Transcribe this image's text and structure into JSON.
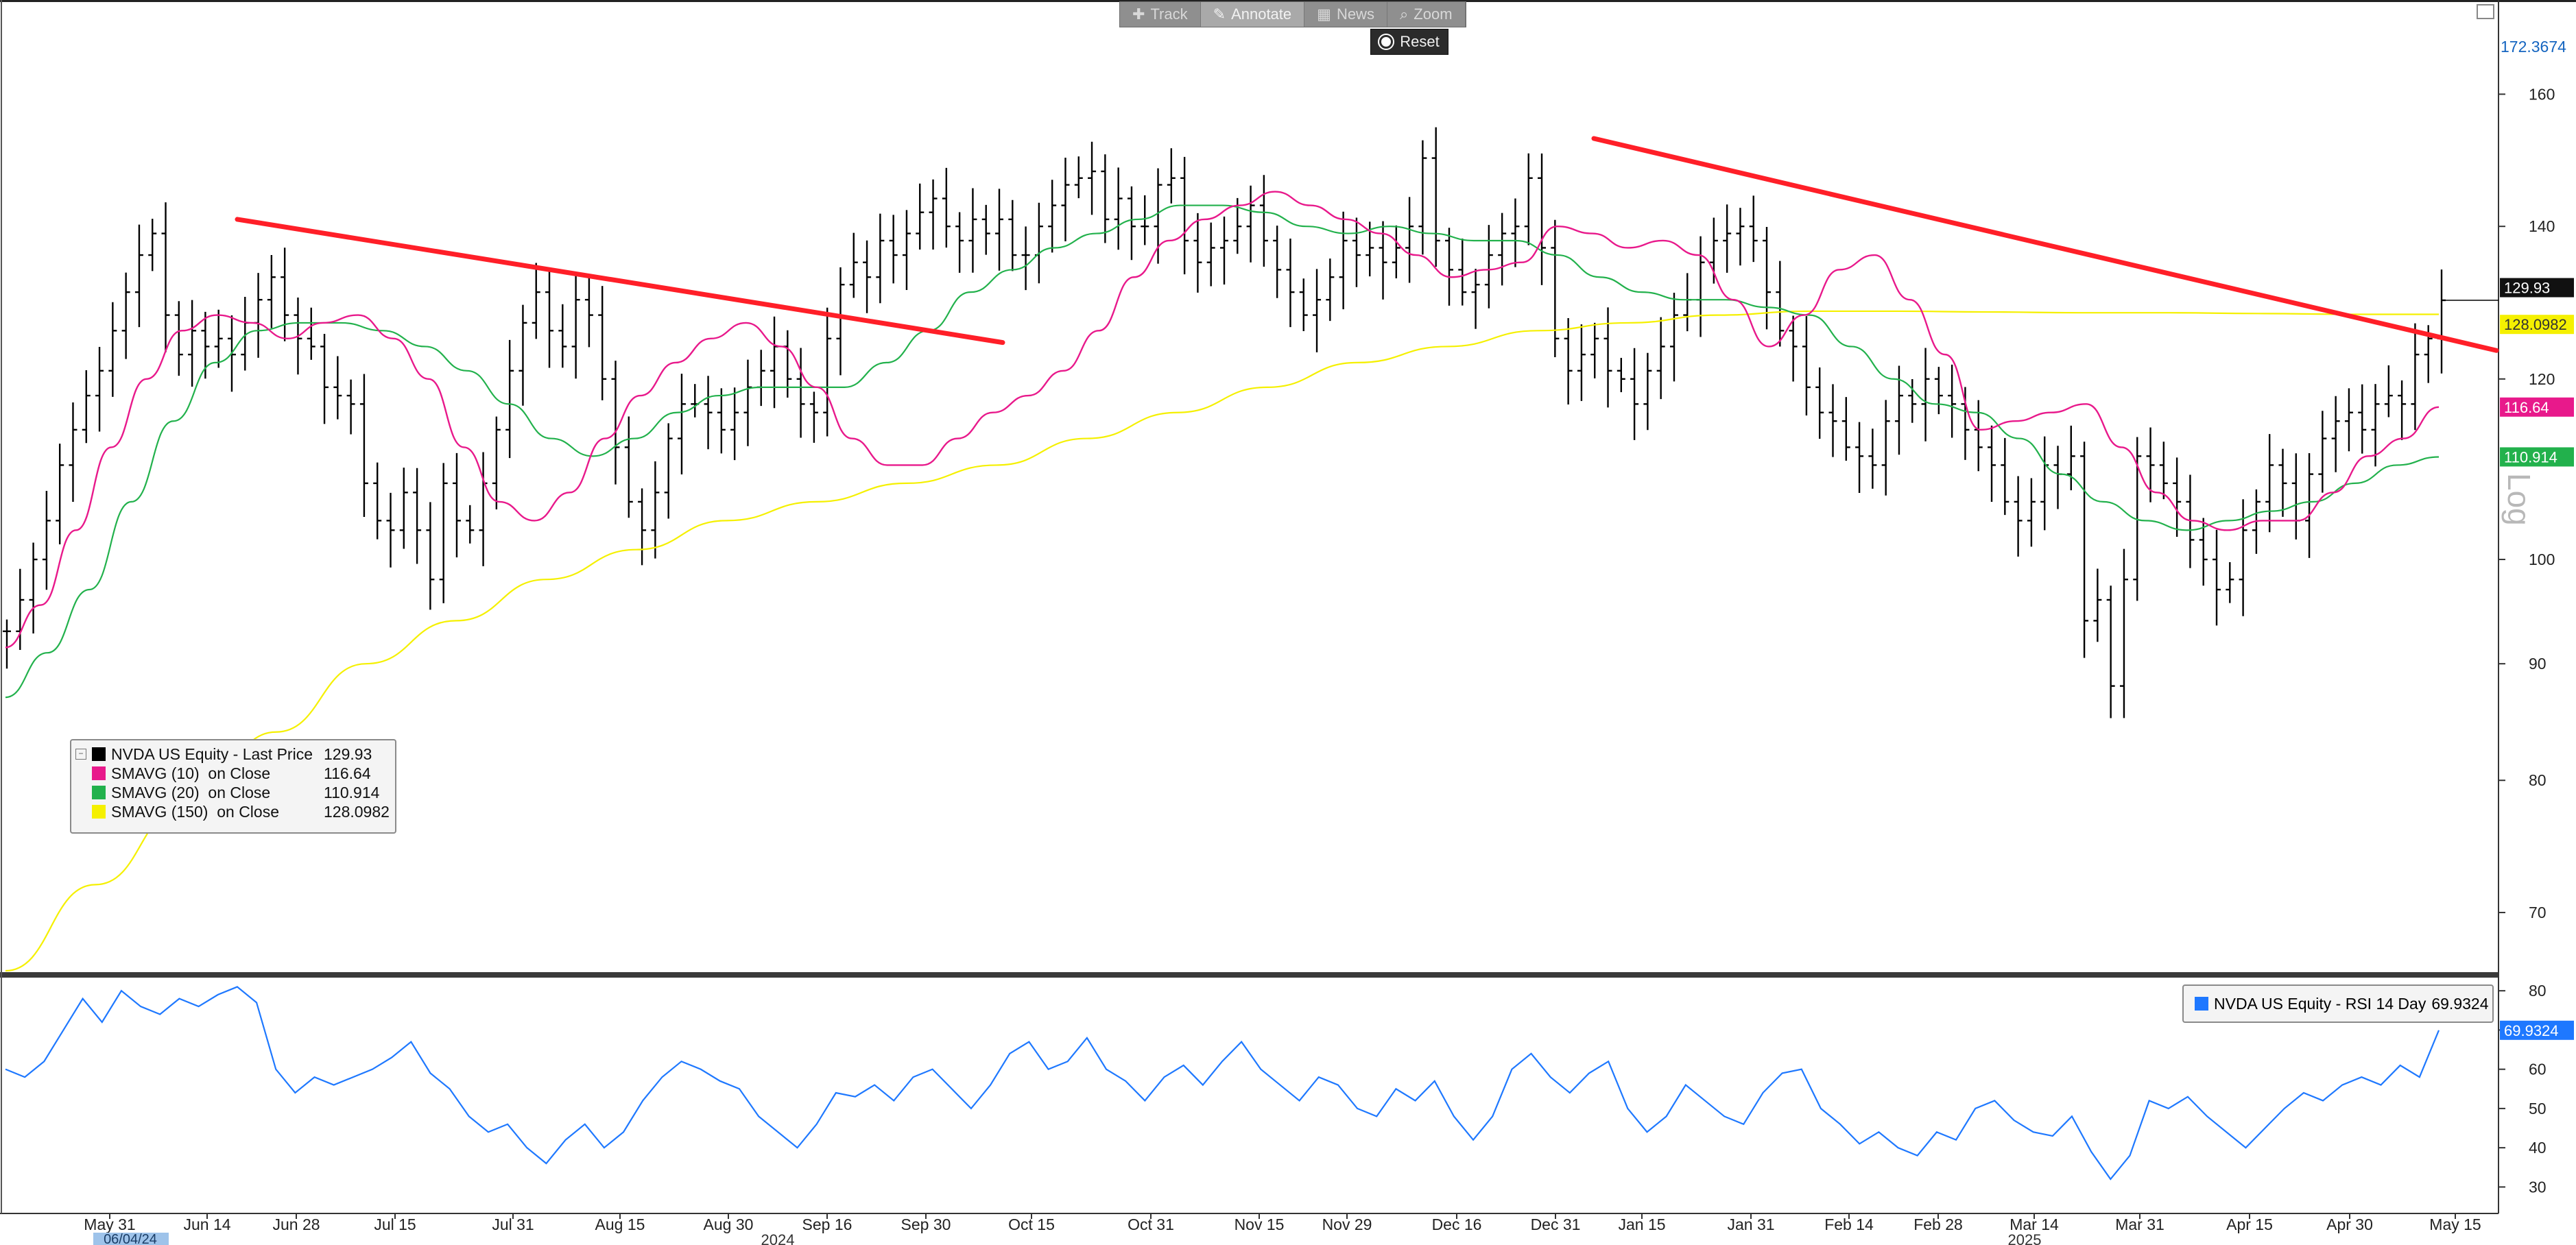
{
  "toolbar": {
    "buttons": [
      {
        "label": "Track",
        "icon": "crosshair-icon",
        "active": false
      },
      {
        "label": "Annotate",
        "icon": "pencil-icon",
        "active": true
      },
      {
        "label": "News",
        "icon": "news-icon",
        "active": false
      },
      {
        "label": "Zoom",
        "icon": "magnifier-icon",
        "active": false
      }
    ],
    "reset_label": "Reset"
  },
  "log_label": "Log",
  "legend": {
    "rows": [
      {
        "name": "NVDA US Equity - Last Price",
        "value": "129.93",
        "color": "#000000"
      },
      {
        "name": "SMAVG (10)  on Close",
        "value": "116.64",
        "color": "#e8198b"
      },
      {
        "name": "SMAVG (20)  on Close",
        "value": "110.914",
        "color": "#22b14c"
      },
      {
        "name": "SMAVG (150)  on Close",
        "value": "128.0982",
        "color": "#f5f000"
      }
    ]
  },
  "rsi_legend": {
    "name": "NVDA US Equity - RSI 14 Day",
    "value": "69.9324",
    "color": "#1e78ff"
  },
  "chart_data": [
    {
      "type": "line",
      "subtype": "ohlc-bars",
      "x_ticks": [
        "May 31",
        "Jun 14",
        "Jun 28",
        "Jul 15",
        "Jul 31",
        "Aug 15",
        "Aug 30",
        "Sep 16",
        "Sep 30",
        "Oct 15",
        "Oct 31",
        "Nov 15",
        "Nov 29",
        "Dec 16",
        "Dec 31",
        "Jan 15",
        "Jan 31",
        "Feb 14",
        "Feb 28",
        "Mar 14",
        "Mar 31",
        "Apr 15",
        "Apr 30",
        "May 15"
      ],
      "year_labels": [
        "2024",
        "2025"
      ],
      "start_date_label": "06/04/24",
      "y_scale": "log",
      "y_ticks": [
        70,
        80,
        90,
        100,
        120,
        140,
        160
      ],
      "ylim": [
        66,
        175
      ],
      "y_max_label": "172.3674",
      "series": [
        {
          "name": "NVDA US Equity - Last Price",
          "color": "#000000",
          "values": [
            93,
            96,
            100,
            104,
            110,
            114,
            118,
            121,
            126,
            131,
            136,
            139,
            128,
            123,
            126,
            124,
            125,
            123,
            127,
            130,
            133,
            128,
            125,
            124,
            119,
            118,
            117,
            108,
            104,
            103,
            107,
            103,
            98,
            108,
            104,
            103,
            108,
            114,
            121,
            127,
            131,
            126,
            124,
            130,
            128,
            120,
            112,
            106,
            103,
            107,
            113,
            117,
            117,
            116,
            114,
            116,
            119,
            121,
            124,
            120,
            117,
            116,
            125,
            132,
            135,
            133,
            138,
            136,
            139,
            142,
            144,
            140,
            138,
            141,
            139,
            141,
            136,
            136,
            140,
            143,
            146,
            147,
            148,
            141,
            144,
            140,
            140,
            146,
            147,
            138,
            135,
            137,
            138,
            140,
            143,
            138,
            134,
            131,
            128,
            130,
            133,
            138,
            136,
            137,
            135,
            137,
            140,
            150,
            138,
            134,
            131,
            132,
            136,
            139,
            140,
            147,
            137,
            125,
            121,
            123,
            125,
            121,
            120,
            117,
            121,
            124,
            128,
            130,
            135,
            138,
            139,
            140,
            138,
            131,
            126,
            124,
            119,
            116,
            115,
            112,
            111,
            110,
            115,
            118,
            117,
            120,
            118,
            117,
            114,
            112,
            110,
            106,
            104,
            106,
            110,
            109,
            111,
            94,
            96,
            88,
            98,
            111,
            110,
            108,
            106,
            102,
            100,
            97,
            98,
            103,
            106,
            110,
            108,
            104,
            109,
            113,
            115,
            116,
            114,
            117,
            118,
            117,
            123,
            125,
            129.93
          ]
        },
        {
          "name": "SMAVG (10)  on Close",
          "color": "#e8198b",
          "values": [
            91.5,
            95.5,
            103,
            112,
            120,
            126,
            128,
            127,
            125,
            127,
            128,
            125,
            120,
            112,
            106,
            104,
            107,
            113,
            118,
            122,
            125,
            127,
            124,
            119,
            113,
            110,
            110,
            113,
            116,
            118,
            121,
            126,
            133,
            138,
            141,
            143,
            145,
            143,
            141,
            139,
            136,
            133,
            134,
            135,
            140,
            139,
            137,
            138,
            136,
            130,
            124,
            128,
            134,
            136,
            130,
            123,
            114,
            115,
            116,
            117,
            112,
            107,
            104,
            103,
            104,
            104,
            107,
            111,
            113,
            116.64
          ]
        },
        {
          "name": "SMAVG (20)  on Close",
          "color": "#22b14c",
          "values": [
            87,
            91,
            97,
            106,
            115,
            122,
            126,
            127,
            127,
            126,
            124,
            121,
            117,
            113,
            111,
            113,
            116,
            118,
            119,
            119,
            119,
            122,
            126,
            131,
            134,
            137,
            139,
            141,
            143,
            143,
            142,
            140,
            139,
            140,
            139,
            138,
            138,
            136,
            133,
            131,
            130,
            130,
            129,
            128,
            124,
            120,
            117,
            116,
            113,
            109,
            106,
            104,
            103,
            104,
            105,
            106,
            108,
            110,
            110.914
          ]
        },
        {
          "name": "SMAVG (150)  on Close",
          "color": "#f5f000",
          "values": [
            66,
            72,
            78,
            84,
            90,
            94,
            98,
            101,
            104,
            106,
            108,
            110,
            113,
            116,
            119,
            122,
            124,
            126,
            127,
            128,
            128.5,
            128.5,
            128.4,
            128.3,
            128.3,
            128.2,
            128.1,
            128.0982
          ]
        }
      ],
      "annotations": [
        {
          "type": "trendline",
          "color": "#ff1f28",
          "from": {
            "x": "Jun 14",
            "y": 141
          },
          "to": {
            "x": "Oct 4",
            "y": 124.5
          }
        },
        {
          "type": "trendline",
          "color": "#ff1f28",
          "from": {
            "x": "Jan 6",
            "y": 153
          },
          "to": {
            "x": "May 16",
            "y": 123.5
          }
        }
      ],
      "price_tags": [
        {
          "value": "129.93",
          "bg": "#111111",
          "fg": "#ffffff"
        },
        {
          "value": "128.0982",
          "bg": "#f5f000",
          "fg": "#333333"
        },
        {
          "value": "116.64",
          "bg": "#e8198b",
          "fg": "#ffffff"
        },
        {
          "value": "110.914",
          "bg": "#22b14c",
          "fg": "#ffffff"
        }
      ]
    },
    {
      "type": "line",
      "title": "",
      "y_ticks": [
        30,
        40,
        50,
        60,
        70,
        80
      ],
      "ylim": [
        25,
        83
      ],
      "series": [
        {
          "name": "NVDA US Equity - RSI 14 Day",
          "color": "#1e78ff",
          "values": [
            60,
            58,
            62,
            70,
            78,
            72,
            80,
            76,
            74,
            78,
            76,
            79,
            81,
            77,
            60,
            54,
            58,
            56,
            58,
            60,
            63,
            67,
            59,
            55,
            48,
            44,
            46,
            40,
            36,
            42,
            46,
            40,
            44,
            52,
            58,
            62,
            60,
            57,
            55,
            48,
            44,
            40,
            46,
            54,
            53,
            56,
            52,
            58,
            60,
            55,
            50,
            56,
            64,
            67,
            60,
            62,
            68,
            60,
            57,
            52,
            58,
            61,
            56,
            62,
            67,
            60,
            56,
            52,
            58,
            56,
            50,
            48,
            55,
            52,
            57,
            48,
            42,
            48,
            60,
            64,
            58,
            54,
            59,
            62,
            50,
            44,
            48,
            56,
            52,
            48,
            46,
            54,
            59,
            60,
            50,
            46,
            41,
            44,
            40,
            38,
            44,
            42,
            50,
            52,
            47,
            44,
            43,
            48,
            39,
            32,
            38,
            52,
            50,
            53,
            48,
            44,
            40,
            45,
            50,
            54,
            52,
            56,
            58,
            56,
            61,
            58,
            69.9324
          ]
        }
      ],
      "last_value_tag": {
        "value": "69.9324",
        "bg": "#1e78ff",
        "fg": "#ffffff"
      }
    }
  ]
}
